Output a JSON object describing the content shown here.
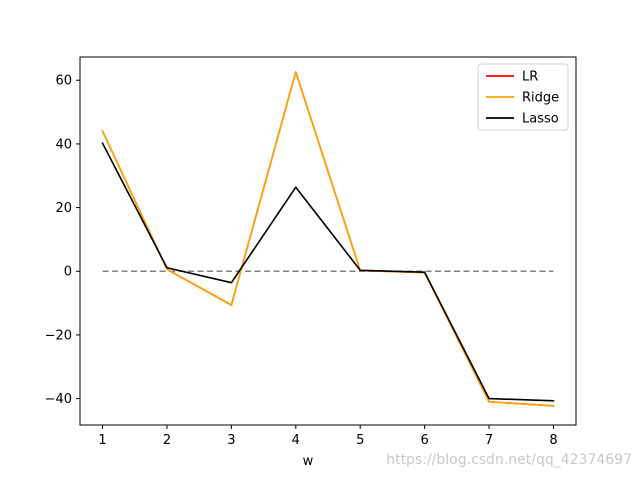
{
  "chart_data": {
    "type": "line",
    "x": [
      1,
      2,
      3,
      4,
      5,
      6,
      7,
      8
    ],
    "series": [
      {
        "name": "LR",
        "color": "#ff0000",
        "values": [
          44.0,
          0.6,
          -10.6,
          62.6,
          0.2,
          -0.4,
          -41.0,
          -42.3
        ]
      },
      {
        "name": "Ridge",
        "color": "#ffa500",
        "values": [
          44.0,
          0.6,
          -10.6,
          62.6,
          0.2,
          -0.4,
          -41.0,
          -42.3
        ]
      },
      {
        "name": "Lasso",
        "color": "#000000",
        "values": [
          40.2,
          1.1,
          -3.6,
          26.4,
          0.3,
          -0.3,
          -40.0,
          -40.7
        ]
      }
    ],
    "reference_line": {
      "y": 0,
      "style": "dashed",
      "color": "#808080"
    },
    "xlabel": "w",
    "ylabel": "",
    "xlim": [
      0.65,
      8.35
    ],
    "ylim": [
      -48.3,
      67.3
    ],
    "xticks": [
      1,
      2,
      3,
      4,
      5,
      6,
      7,
      8
    ],
    "xtick_labels": [
      "1",
      "2",
      "3",
      "4",
      "5",
      "6",
      "7",
      "8"
    ],
    "yticks": [
      -40,
      -20,
      0,
      20,
      40,
      60
    ],
    "ytick_labels": [
      "−40",
      "−20",
      "0",
      "20",
      "40",
      "60"
    ],
    "legend_position": "top-right",
    "grid": false
  },
  "watermark": "https://blog.csdn.net/qq_42374697"
}
